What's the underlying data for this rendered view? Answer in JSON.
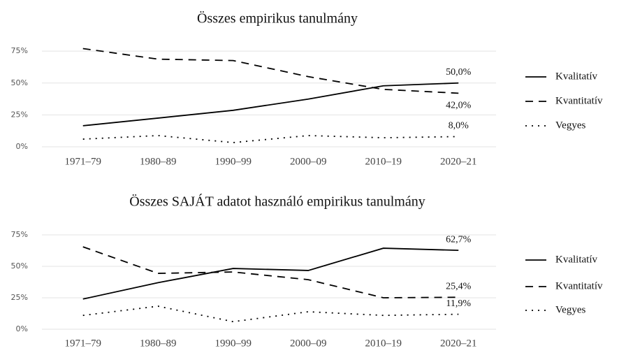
{
  "chart_data": [
    {
      "type": "line",
      "title": "Összes empirikus tanulmány",
      "categories": [
        "1971–79",
        "1980–89",
        "1990–99",
        "2000–09",
        "2010–19",
        "2020–21"
      ],
      "ylim": [
        0,
        80
      ],
      "yticks": [
        {
          "value": 0,
          "label": "0%"
        },
        {
          "value": 25,
          "label": "25%"
        },
        {
          "value": 50,
          "label": "50%"
        },
        {
          "value": 75,
          "label": "75%"
        }
      ],
      "grid": true,
      "series": [
        {
          "name": "Kvalitatív",
          "color": "#000000",
          "dash": "solid",
          "values": [
            16.5,
            22.5,
            28.6,
            37.4,
            47.8,
            50.0
          ],
          "value_labels": [
            null,
            null,
            null,
            null,
            null,
            "50,0%"
          ]
        },
        {
          "name": "Kvantitatív",
          "color": "#000000",
          "dash": "dashed",
          "values": [
            77,
            68.7,
            67.6,
            55,
            45,
            42.0
          ],
          "value_labels": [
            null,
            null,
            null,
            null,
            null,
            "42,0%"
          ]
        },
        {
          "name": "Vegyes",
          "color": "#000000",
          "dash": "dotted",
          "values": [
            6,
            8.8,
            3.3,
            8.8,
            7.1,
            8.0
          ],
          "value_labels": [
            null,
            null,
            null,
            null,
            null,
            "8,0%"
          ]
        }
      ]
    },
    {
      "type": "line",
      "title": "Összes SAJÁT adatot használó empirikus tanulmány",
      "categories": [
        "1971–79",
        "1980–89",
        "1990–99",
        "2000–09",
        "2010–19",
        "2020–21"
      ],
      "ylim": [
        0,
        80
      ],
      "yticks": [
        {
          "value": 0,
          "label": "0%"
        },
        {
          "value": 25,
          "label": "25%"
        },
        {
          "value": 50,
          "label": "50%"
        },
        {
          "value": 75,
          "label": "75%"
        }
      ],
      "grid": true,
      "series": [
        {
          "name": "Kvalitatív",
          "color": "#000000",
          "dash": "solid",
          "values": [
            24,
            37,
            48.3,
            46.7,
            64.4,
            62.7
          ],
          "value_labels": [
            null,
            null,
            null,
            null,
            null,
            "62,7%"
          ]
        },
        {
          "name": "Kvantitatív",
          "color": "#000000",
          "dash": "dashed",
          "values": [
            65.5,
            44.4,
            45.5,
            39.4,
            25,
            25.4
          ],
          "value_labels": [
            null,
            null,
            null,
            null,
            null,
            "25,4%"
          ]
        },
        {
          "name": "Vegyes",
          "color": "#000000",
          "dash": "dotted",
          "values": [
            11,
            18.3,
            6,
            13.9,
            11,
            11.9
          ],
          "value_labels": [
            null,
            null,
            null,
            null,
            null,
            "11,9%"
          ]
        }
      ]
    }
  ]
}
